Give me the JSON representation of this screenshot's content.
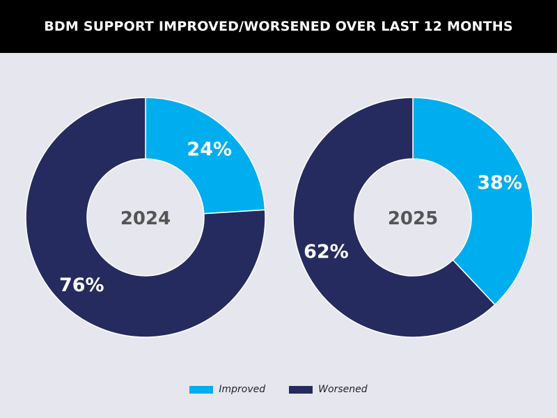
{
  "title": "BDM SUPPORT IMPROVED/WORSENED OVER LAST 12 MONTHS",
  "colors": {
    "improved": "#00aeef",
    "worsened": "#252b5e",
    "background": "#e6e7ee",
    "center_label": "#555555"
  },
  "legend": [
    {
      "name": "Improved",
      "color": "#00aeef"
    },
    {
      "name": "Worsened",
      "color": "#252b5e"
    }
  ],
  "chart_data": [
    {
      "type": "pie",
      "center_label": "2024",
      "slices": [
        {
          "name": "Improved",
          "value": 24,
          "label": "24%"
        },
        {
          "name": "Worsened",
          "value": 76,
          "label": "76%"
        }
      ]
    },
    {
      "type": "pie",
      "center_label": "2025",
      "slices": [
        {
          "name": "Improved",
          "value": 38,
          "label": "38%"
        },
        {
          "name": "Worsened",
          "value": 62,
          "label": "62%"
        }
      ]
    }
  ]
}
